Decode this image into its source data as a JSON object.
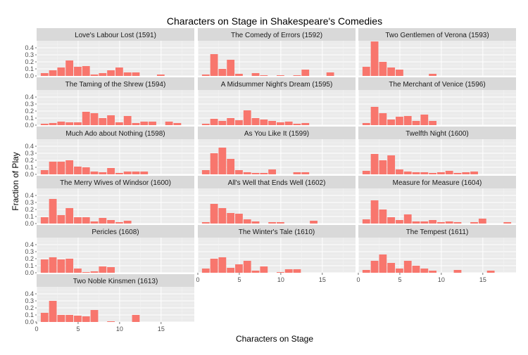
{
  "chart_data": {
    "type": "bar",
    "title": "Characters on Stage in Shakespeare's Comedies",
    "xlabel": "Characters on Stage",
    "ylabel": "Fraction of Play",
    "xlim": [
      0,
      19
    ],
    "ylim": [
      0,
      0.5
    ],
    "x_ticks": [
      0,
      5,
      10,
      15
    ],
    "y_ticks": [
      0.0,
      0.1,
      0.2,
      0.3,
      0.4
    ],
    "y_tick_labels": [
      "0.0",
      "0.1",
      "0.2",
      "0.3",
      "0.4"
    ],
    "grid": true,
    "facet_columns": 3,
    "bar_color": "#F8766D",
    "panel_background": "#EBEBEB",
    "strip_background": "#D9D9D9",
    "categories": [
      1,
      2,
      3,
      4,
      5,
      6,
      7,
      8,
      9,
      10,
      11,
      12,
      13,
      14,
      15,
      16,
      17,
      18
    ],
    "panels": [
      {
        "label": "Love's Labour Lost (1591)",
        "values": [
          0.04,
          0.08,
          0.12,
          0.22,
          0.13,
          0.14,
          0.02,
          0.04,
          0.08,
          0.12,
          0.05,
          0.05,
          0,
          0,
          0.02,
          0,
          0,
          0
        ]
      },
      {
        "label": "The Comedy of Errors (1592)",
        "values": [
          0.02,
          0.31,
          0.1,
          0.23,
          0.03,
          0,
          0.04,
          0.01,
          0,
          0.01,
          0,
          0.01,
          0.09,
          0,
          0,
          0.05,
          0,
          0
        ]
      },
      {
        "label": "Two Gentlemen of Verona (1593)",
        "values": [
          0.13,
          0.49,
          0.2,
          0.12,
          0.09,
          0,
          0,
          0,
          0.03,
          0,
          0,
          0,
          0,
          0,
          0,
          0,
          0,
          0
        ]
      },
      {
        "label": "The Taming of the Shrew (1594)",
        "values": [
          0.02,
          0.03,
          0.05,
          0.04,
          0.04,
          0.19,
          0.17,
          0.1,
          0.14,
          0.04,
          0.13,
          0.03,
          0.05,
          0.05,
          0,
          0.05,
          0.03,
          0
        ]
      },
      {
        "label": "A Midsummer Night's Dream (1595)",
        "values": [
          0.02,
          0.09,
          0.06,
          0.1,
          0.07,
          0.21,
          0.1,
          0.08,
          0.06,
          0.04,
          0.05,
          0.02,
          0.03,
          0,
          0,
          0,
          0,
          0
        ]
      },
      {
        "label": "The Merchant of Venice (1596)",
        "values": [
          0.03,
          0.26,
          0.17,
          0.08,
          0.12,
          0.13,
          0.06,
          0.15,
          0.06,
          0,
          0,
          0,
          0,
          0,
          0,
          0,
          0,
          0
        ]
      },
      {
        "label": "Much Ado about Nothing (1598)",
        "values": [
          0.06,
          0.18,
          0.18,
          0.2,
          0.11,
          0.1,
          0.04,
          0.03,
          0.09,
          0.02,
          0.04,
          0.04,
          0.04,
          0,
          0,
          0,
          0,
          0
        ]
      },
      {
        "label": "As You Like It (1599)",
        "values": [
          0.06,
          0.3,
          0.38,
          0.22,
          0.06,
          0.03,
          0.02,
          0.02,
          0.07,
          0,
          0,
          0.03,
          0.03,
          0,
          0,
          0,
          0,
          0
        ]
      },
      {
        "label": "Twelfth Night (1600)",
        "values": [
          0.05,
          0.29,
          0.2,
          0.27,
          0.07,
          0.04,
          0.03,
          0.03,
          0.02,
          0.03,
          0.05,
          0.02,
          0.03,
          0.04,
          0,
          0,
          0,
          0
        ]
      },
      {
        "label": "The Merry Wives of Windsor (1600)",
        "values": [
          0.09,
          0.35,
          0.12,
          0.22,
          0.09,
          0.09,
          0.03,
          0.08,
          0.05,
          0.02,
          0.04,
          0,
          0,
          0,
          0,
          0,
          0,
          0
        ]
      },
      {
        "label": "All's Well that Ends Well (1602)",
        "values": [
          0.02,
          0.28,
          0.22,
          0.15,
          0.14,
          0.06,
          0.03,
          0,
          0.02,
          0.02,
          0,
          0,
          0,
          0.04,
          0,
          0,
          0,
          0
        ]
      },
      {
        "label": "Measure for Measure (1604)",
        "values": [
          0.06,
          0.33,
          0.2,
          0.09,
          0.05,
          0.13,
          0.03,
          0.03,
          0.05,
          0.02,
          0.03,
          0.02,
          0,
          0.02,
          0.07,
          0,
          0,
          0.02
        ]
      },
      {
        "label": "Pericles (1608)",
        "values": [
          0.19,
          0.22,
          0.19,
          0.2,
          0.06,
          0.01,
          0.02,
          0.09,
          0.08,
          0,
          0,
          0,
          0,
          0,
          0,
          0,
          0,
          0
        ]
      },
      {
        "label": "The Winter's Tale (1610)",
        "values": [
          0.06,
          0.2,
          0.22,
          0.07,
          0.12,
          0.17,
          0.03,
          0.09,
          0,
          0.01,
          0.05,
          0.05,
          0,
          0,
          0,
          0,
          0,
          0
        ]
      },
      {
        "label": "The Tempest (1611)",
        "values": [
          0.04,
          0.17,
          0.26,
          0.14,
          0.06,
          0.17,
          0.1,
          0.06,
          0.03,
          0,
          0,
          0.04,
          0,
          0,
          0,
          0.03,
          0,
          0
        ]
      },
      {
        "label": "Two Noble Kinsmen (1613)",
        "values": [
          0.13,
          0.3,
          0.1,
          0.1,
          0.09,
          0.08,
          0.17,
          0,
          0.01,
          0,
          0,
          0.1,
          0,
          0,
          0,
          0,
          0,
          0
        ]
      }
    ]
  }
}
